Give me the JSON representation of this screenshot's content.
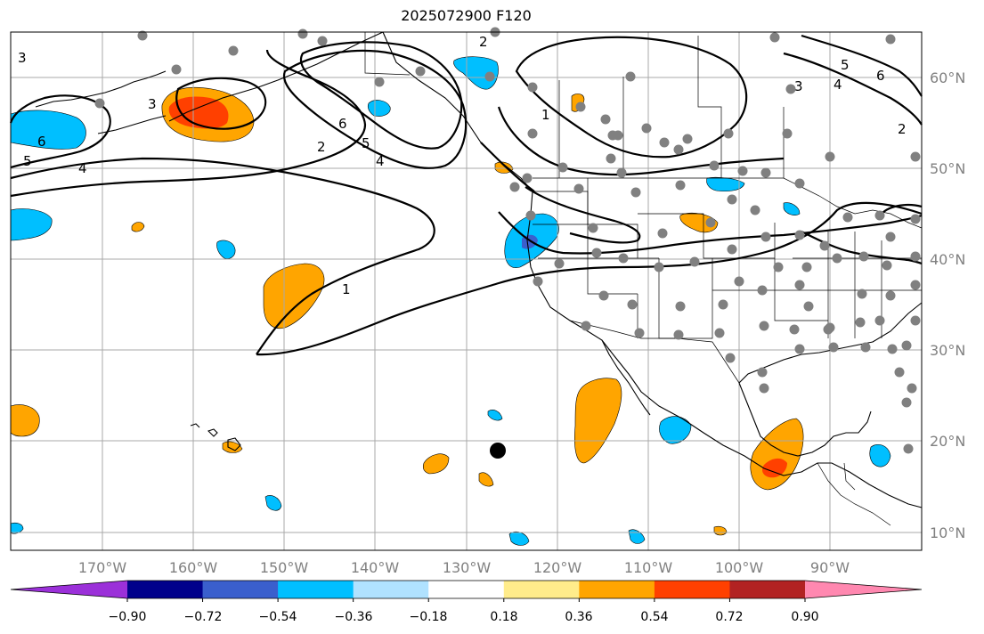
{
  "title": "2025072900 F120",
  "map": {
    "type": "contour-map",
    "lon_labels": [
      "170°W",
      "160°W",
      "150°W",
      "140°W",
      "130°W",
      "120°W",
      "110°W",
      "100°W",
      "90°W"
    ],
    "lat_labels": [
      "60°N",
      "50°N",
      "40°N",
      "30°N",
      "20°N",
      "10°N"
    ],
    "grid": true,
    "contour_labels": [
      "3",
      "3",
      "4",
      "5",
      "6",
      "6",
      "5",
      "4",
      "2",
      "1",
      "1",
      "6",
      "5",
      "4",
      "3",
      "2",
      "2"
    ],
    "marker": "black-dot"
  },
  "colorbar": {
    "ticks": [
      "−0.90",
      "−0.72",
      "−0.54",
      "−0.36",
      "−0.18",
      "0.18",
      "0.36",
      "0.54",
      "0.72",
      "0.90"
    ],
    "colors": [
      "#9b30d9",
      "#00008b",
      "#3a5fcd",
      "#00bfff",
      "#b0e2ff",
      "#ffffff",
      "#ffec8b",
      "#ffa500",
      "#ff4000",
      "#b22222",
      "#ff88b0"
    ],
    "extend": "both"
  }
}
